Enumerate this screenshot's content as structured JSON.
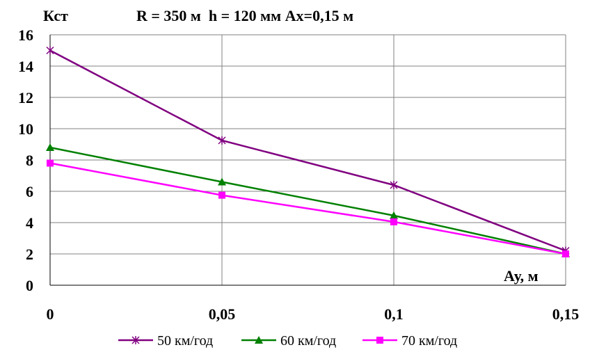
{
  "chart_data": {
    "type": "line",
    "title": "R = 350 м  h = 120 мм Ах=0,15 м",
    "ylabel": "Кст",
    "xlabel": "Ау, м",
    "categories": [
      "0",
      "0,05",
      "0,1",
      "0,15"
    ],
    "x": [
      0,
      0.05,
      0.1,
      0.15
    ],
    "ylim": [
      0,
      16
    ],
    "yticks": [
      "0",
      "2",
      "4",
      "6",
      "8",
      "10",
      "12",
      "14",
      "16"
    ],
    "grid": true,
    "legend_position": "bottom",
    "series": [
      {
        "name": "50 км/год",
        "color": "#800080",
        "marker": "star",
        "values": [
          15.0,
          9.25,
          6.4,
          2.2
        ]
      },
      {
        "name": "60 км/год",
        "color": "#008000",
        "marker": "triangle",
        "values": [
          8.8,
          6.6,
          4.45,
          2.0
        ]
      },
      {
        "name": "70 км/год",
        "color": "#ff00ff",
        "marker": "square",
        "values": [
          7.8,
          5.75,
          4.05,
          2.0
        ]
      }
    ]
  }
}
